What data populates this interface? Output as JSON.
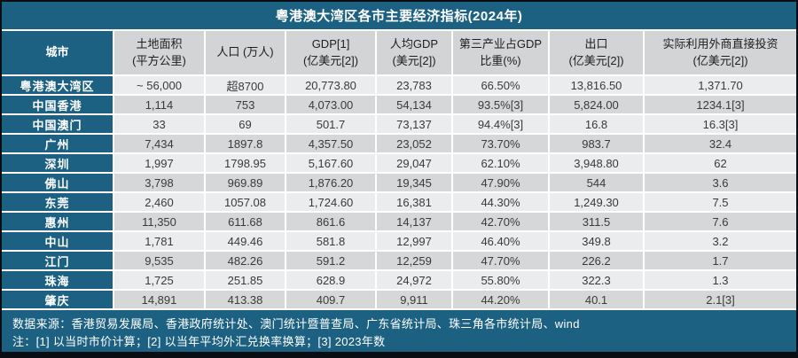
{
  "title": "粤港澳大湾区各市主要经济指标(2024年)",
  "chart_data": {
    "type": "table",
    "title": "粤港澳大湾区各市主要经济指标(2024年)",
    "columns": [
      {
        "label": "城市",
        "sub": ""
      },
      {
        "label": "土地面积",
        "sub": "(平方公里)"
      },
      {
        "label": "人口 (万人)",
        "sub": ""
      },
      {
        "label": "GDP[1]",
        "sub": "(亿美元[2])"
      },
      {
        "label": "人均GDP",
        "sub": "(美元[2])"
      },
      {
        "label": "第三产业占GDP",
        "sub": "比重(%)"
      },
      {
        "label": "出口",
        "sub": "(亿美元[2])"
      },
      {
        "label": "实际利用外商直接投资",
        "sub": "(亿美元[2])"
      }
    ],
    "rows": [
      [
        "粤港澳大湾区",
        "~ 56,000",
        "超8700",
        "20,773.80",
        "23,783",
        "66.50%",
        "13,816.50",
        "1,371.70"
      ],
      [
        "中国香港",
        "1,114",
        "753",
        "4,073.00",
        "54,134",
        "93.5%[3]",
        "5,824.00",
        "1234.1[3]"
      ],
      [
        "中国澳门",
        "33",
        "69",
        "501.7",
        "73,137",
        "94.4%[3]",
        "16.8",
        "16.3[3]"
      ],
      [
        "广州",
        "7,434",
        "1897.8",
        "4,357.50",
        "23,052",
        "73.70%",
        "983.7",
        "32.4"
      ],
      [
        "深圳",
        "1,997",
        "1798.95",
        "5,167.60",
        "29,047",
        "62.10%",
        "3,948.80",
        "62"
      ],
      [
        "佛山",
        "3,798",
        "969.89",
        "1,876.20",
        "19,345",
        "47.90%",
        "544",
        "3.6"
      ],
      [
        "东莞",
        "2,460",
        "1057.08",
        "1,724.60",
        "16,381",
        "44.30%",
        "1,249.30",
        "7.5"
      ],
      [
        "惠州",
        "11,350",
        "611.68",
        "861.6",
        "14,137",
        "42.70%",
        "311.5",
        "7.6"
      ],
      [
        "中山",
        "1,781",
        "449.46",
        "581.8",
        "12,997",
        "46.40%",
        "349.8",
        "3.2"
      ],
      [
        "江门",
        "9,535",
        "482.26",
        "591.2",
        "12,259",
        "47.70%",
        "226.2",
        "1.7"
      ],
      [
        "珠海",
        "1,725",
        "251.85",
        "628.9",
        "24,972",
        "55.80%",
        "322.3",
        "1.3"
      ],
      [
        "肇庆",
        "14,891",
        "413.38",
        "409.7",
        "9,911",
        "44.20%",
        "40.1",
        "2.1[3]"
      ]
    ]
  },
  "footer": {
    "source": "数据来源：香港贸易发展局、香港政府统计处、澳门统计暨普查局、广东省统计局、珠三角各市统计局、wind",
    "note": "注：[1] 以当时市价计算；[2] 以当年平均外汇兑换率换算；[3] 2023年数"
  },
  "colors": {
    "teal": "#1c6181",
    "header_gray": "#d2d4d6",
    "row_light": "#eaecee",
    "row_dark": "#d5d7d9",
    "grid_white": "#ffffff",
    "outer_border": "#0a0e13"
  }
}
